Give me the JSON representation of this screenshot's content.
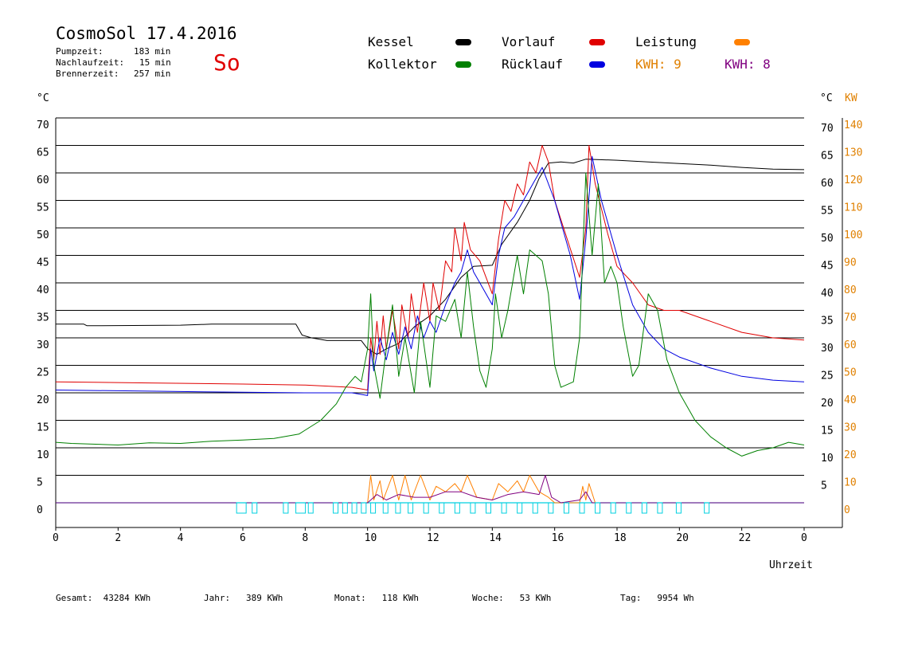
{
  "header": {
    "title": "CosmoSol 17.4.2016",
    "weekday": "So",
    "info": [
      {
        "label": "Pumpzeit:",
        "value": "183 min"
      },
      {
        "label": "Nachlaufzeit:",
        "value": "15 min"
      },
      {
        "label": "Brennerzeit:",
        "value": "257 min"
      }
    ]
  },
  "legend": {
    "items": [
      {
        "label": "Kessel",
        "color": "#000000"
      },
      {
        "label": "Vorlauf",
        "color": "#e00000"
      },
      {
        "label": "Leistung",
        "color": "#ff8000"
      },
      {
        "label": "Kollektor",
        "color": "#008000"
      },
      {
        "label": "Rücklauf",
        "color": "#0000e0"
      }
    ],
    "kwh_orange": "KWH: 9",
    "kwh_purple": "KWH: 8",
    "kwh_orange_color": "#e08000",
    "kwh_purple_color": "#800080"
  },
  "axes": {
    "left_unit": "°C",
    "right_unit_c": "°C",
    "right_unit_kw": "KW",
    "x_label": "Uhrzeit"
  },
  "footer": {
    "gesamt": "Gesamt:  43284 KWh",
    "jahr": "Jahr:   389 KWh",
    "monat": "Monat:   118 KWh",
    "woche": "Woche:   53 KWh",
    "tag": "Tag:   9954 Wh"
  },
  "chart_data": {
    "type": "line",
    "x_unit": "hour",
    "xlim": [
      0,
      24
    ],
    "ylim": [
      -4,
      72
    ],
    "y_ticks": [
      0,
      5,
      10,
      15,
      20,
      25,
      30,
      35,
      40,
      45,
      50,
      55,
      60,
      65,
      70
    ],
    "y_ticks_right": [
      5,
      10,
      15,
      20,
      25,
      30,
      35,
      40,
      45,
      50,
      55,
      60,
      65,
      70
    ],
    "kw_ticks": [
      0,
      10,
      20,
      30,
      40,
      50,
      60,
      70,
      80,
      90,
      100,
      110,
      120,
      130,
      140
    ],
    "x_ticks": [
      "0",
      "2",
      "4",
      "6",
      "8",
      "10",
      "12",
      "14",
      "16",
      "18",
      "20",
      "22",
      "0"
    ],
    "series": [
      {
        "name": "Kessel",
        "color": "#000000",
        "points": [
          [
            0,
            32.5
          ],
          [
            0.9,
            32.5
          ],
          [
            1,
            32.2
          ],
          [
            4,
            32.3
          ],
          [
            5,
            32.5
          ],
          [
            7.7,
            32.5
          ],
          [
            7.8,
            31.5
          ],
          [
            7.9,
            30.5
          ],
          [
            8.2,
            30
          ],
          [
            8.7,
            29.5
          ],
          [
            9.8,
            29.5
          ],
          [
            10,
            28
          ],
          [
            10.3,
            27
          ],
          [
            10.6,
            28
          ],
          [
            11,
            29
          ],
          [
            11.5,
            32
          ],
          [
            12,
            34
          ],
          [
            12.5,
            37
          ],
          [
            13,
            41
          ],
          [
            13.4,
            43
          ],
          [
            14,
            43.2
          ],
          [
            14.3,
            47
          ],
          [
            14.8,
            51
          ],
          [
            15.2,
            55
          ],
          [
            15.5,
            59
          ],
          [
            15.8,
            61.8
          ],
          [
            16.2,
            62
          ],
          [
            16.6,
            61.8
          ],
          [
            17,
            62.5
          ],
          [
            18,
            62.3
          ],
          [
            19,
            62
          ],
          [
            20,
            61.7
          ],
          [
            21,
            61.4
          ],
          [
            22,
            61
          ],
          [
            23,
            60.7
          ],
          [
            24,
            60.6
          ]
        ]
      },
      {
        "name": "Vorlauf",
        "color": "#e00000",
        "points": [
          [
            0,
            22
          ],
          [
            3,
            21.8
          ],
          [
            6,
            21.6
          ],
          [
            8,
            21.4
          ],
          [
            9.5,
            21
          ],
          [
            10,
            20.5
          ],
          [
            10.1,
            30
          ],
          [
            10.2,
            26
          ],
          [
            10.3,
            33
          ],
          [
            10.4,
            27
          ],
          [
            10.5,
            34
          ],
          [
            10.6,
            28
          ],
          [
            10.8,
            35
          ],
          [
            11,
            28
          ],
          [
            11.1,
            36
          ],
          [
            11.3,
            30
          ],
          [
            11.4,
            38
          ],
          [
            11.6,
            31
          ],
          [
            11.8,
            40
          ],
          [
            12,
            33
          ],
          [
            12.1,
            40
          ],
          [
            12.3,
            35
          ],
          [
            12.5,
            44
          ],
          [
            12.7,
            42
          ],
          [
            12.8,
            50
          ],
          [
            13,
            44
          ],
          [
            13.1,
            51
          ],
          [
            13.3,
            46
          ],
          [
            13.6,
            44
          ],
          [
            14,
            38
          ],
          [
            14.2,
            48
          ],
          [
            14.4,
            55
          ],
          [
            14.6,
            53
          ],
          [
            14.8,
            58
          ],
          [
            15,
            56
          ],
          [
            15.2,
            62
          ],
          [
            15.4,
            60
          ],
          [
            15.6,
            65
          ],
          [
            15.8,
            62
          ],
          [
            16,
            55
          ],
          [
            16.4,
            48
          ],
          [
            16.8,
            41
          ],
          [
            17,
            50
          ],
          [
            17.1,
            65
          ],
          [
            17.3,
            58
          ],
          [
            17.7,
            49
          ],
          [
            18,
            43
          ],
          [
            18.5,
            40
          ],
          [
            19,
            36
          ],
          [
            19.5,
            35
          ],
          [
            20,
            35
          ],
          [
            21,
            33
          ],
          [
            22,
            31
          ],
          [
            23,
            30
          ],
          [
            24,
            29.6
          ]
        ]
      },
      {
        "name": "Rücklauf",
        "color": "#0000e0",
        "points": [
          [
            0,
            20.5
          ],
          [
            3,
            20.3
          ],
          [
            6,
            20.1
          ],
          [
            8,
            20
          ],
          [
            9.5,
            20
          ],
          [
            10,
            19.5
          ],
          [
            10.1,
            28
          ],
          [
            10.2,
            24
          ],
          [
            10.4,
            30
          ],
          [
            10.6,
            26
          ],
          [
            10.8,
            31
          ],
          [
            11,
            27
          ],
          [
            11.2,
            32
          ],
          [
            11.4,
            28
          ],
          [
            11.6,
            34
          ],
          [
            11.8,
            30
          ],
          [
            12,
            33
          ],
          [
            12.2,
            31
          ],
          [
            12.5,
            36
          ],
          [
            12.8,
            40
          ],
          [
            13,
            42
          ],
          [
            13.2,
            46
          ],
          [
            13.4,
            42
          ],
          [
            13.6,
            40
          ],
          [
            14,
            36
          ],
          [
            14.2,
            45
          ],
          [
            14.4,
            50
          ],
          [
            14.7,
            52
          ],
          [
            15,
            55
          ],
          [
            15.3,
            58
          ],
          [
            15.6,
            61
          ],
          [
            16,
            55
          ],
          [
            16.5,
            45
          ],
          [
            16.8,
            37
          ],
          [
            17,
            48
          ],
          [
            17.2,
            63
          ],
          [
            17.5,
            55
          ],
          [
            18,
            45
          ],
          [
            18.5,
            36
          ],
          [
            19,
            31
          ],
          [
            19.5,
            28
          ],
          [
            20,
            26.5
          ],
          [
            21,
            24.5
          ],
          [
            22,
            23
          ],
          [
            23,
            22.3
          ],
          [
            24,
            22
          ]
        ]
      },
      {
        "name": "Kollektor",
        "color": "#008000",
        "points": [
          [
            0,
            11
          ],
          [
            0.5,
            10.8
          ],
          [
            2,
            10.5
          ],
          [
            3,
            10.9
          ],
          [
            4,
            10.8
          ],
          [
            5,
            11.2
          ],
          [
            6,
            11.4
          ],
          [
            7,
            11.7
          ],
          [
            7.8,
            12.5
          ],
          [
            8.5,
            15
          ],
          [
            9,
            18
          ],
          [
            9.3,
            21
          ],
          [
            9.6,
            23
          ],
          [
            9.8,
            22
          ],
          [
            10,
            28
          ],
          [
            10.1,
            38
          ],
          [
            10.2,
            25
          ],
          [
            10.4,
            19
          ],
          [
            10.6,
            28
          ],
          [
            10.8,
            36
          ],
          [
            11,
            23
          ],
          [
            11.2,
            30
          ],
          [
            11.5,
            20
          ],
          [
            11.7,
            33
          ],
          [
            12,
            21
          ],
          [
            12.2,
            34
          ],
          [
            12.5,
            33
          ],
          [
            12.8,
            37
          ],
          [
            13,
            30
          ],
          [
            13.1,
            36
          ],
          [
            13.2,
            42
          ],
          [
            13.4,
            32
          ],
          [
            13.6,
            24
          ],
          [
            13.8,
            21
          ],
          [
            14,
            28
          ],
          [
            14.1,
            38
          ],
          [
            14.3,
            30
          ],
          [
            14.5,
            35
          ],
          [
            14.8,
            45
          ],
          [
            15,
            38
          ],
          [
            15.2,
            46
          ],
          [
            15.6,
            44
          ],
          [
            15.8,
            38
          ],
          [
            16,
            25
          ],
          [
            16.2,
            21
          ],
          [
            16.6,
            22
          ],
          [
            16.8,
            30
          ],
          [
            17,
            60
          ],
          [
            17.2,
            45
          ],
          [
            17.4,
            58
          ],
          [
            17.6,
            40
          ],
          [
            17.8,
            43
          ],
          [
            18,
            40
          ],
          [
            18.2,
            32
          ],
          [
            18.5,
            23
          ],
          [
            18.7,
            25
          ],
          [
            19,
            38
          ],
          [
            19.3,
            35
          ],
          [
            19.6,
            26
          ],
          [
            20,
            20
          ],
          [
            20.5,
            15
          ],
          [
            21,
            12
          ],
          [
            21.5,
            10
          ],
          [
            22,
            8.5
          ],
          [
            22.5,
            9.5
          ],
          [
            23,
            10
          ],
          [
            23.5,
            11
          ],
          [
            24,
            10.5
          ]
        ]
      },
      {
        "name": "Leistung",
        "color": "#ff8000",
        "points": [
          [
            0,
            0
          ],
          [
            10,
            0
          ],
          [
            10.1,
            5
          ],
          [
            10.2,
            0.5
          ],
          [
            10.4,
            4
          ],
          [
            10.5,
            0.5
          ],
          [
            10.8,
            5
          ],
          [
            11,
            0.5
          ],
          [
            11.2,
            5
          ],
          [
            11.4,
            0.5
          ],
          [
            11.7,
            5
          ],
          [
            12,
            0.5
          ],
          [
            12.2,
            3
          ],
          [
            12.5,
            2
          ],
          [
            12.8,
            3.5
          ],
          [
            13,
            2
          ],
          [
            13.2,
            5
          ],
          [
            13.5,
            1
          ],
          [
            14,
            0.5
          ],
          [
            14.2,
            3.5
          ],
          [
            14.5,
            2
          ],
          [
            14.8,
            4
          ],
          [
            15,
            2
          ],
          [
            15.2,
            5
          ],
          [
            15.5,
            2
          ],
          [
            15.8,
            1
          ],
          [
            16,
            0
          ],
          [
            16.8,
            0
          ],
          [
            16.9,
            3
          ],
          [
            17,
            0.5
          ],
          [
            17.1,
            3.5
          ],
          [
            17.3,
            0
          ],
          [
            24,
            0
          ]
        ]
      },
      {
        "name": "Leistung (violett)",
        "color": "#800080",
        "points": [
          [
            0,
            0
          ],
          [
            10,
            0
          ],
          [
            10.3,
            1.5
          ],
          [
            10.6,
            0.5
          ],
          [
            11,
            1.5
          ],
          [
            11.5,
            1
          ],
          [
            12,
            1
          ],
          [
            12.5,
            2
          ],
          [
            13,
            2
          ],
          [
            13.5,
            1
          ],
          [
            14,
            0.5
          ],
          [
            14.5,
            1.5
          ],
          [
            15,
            2
          ],
          [
            15.5,
            1.5
          ],
          [
            15.7,
            5
          ],
          [
            15.9,
            1
          ],
          [
            16.2,
            0
          ],
          [
            16.8,
            0.5
          ],
          [
            17,
            2
          ],
          [
            17.2,
            0
          ],
          [
            24,
            0
          ]
        ]
      }
    ]
  }
}
